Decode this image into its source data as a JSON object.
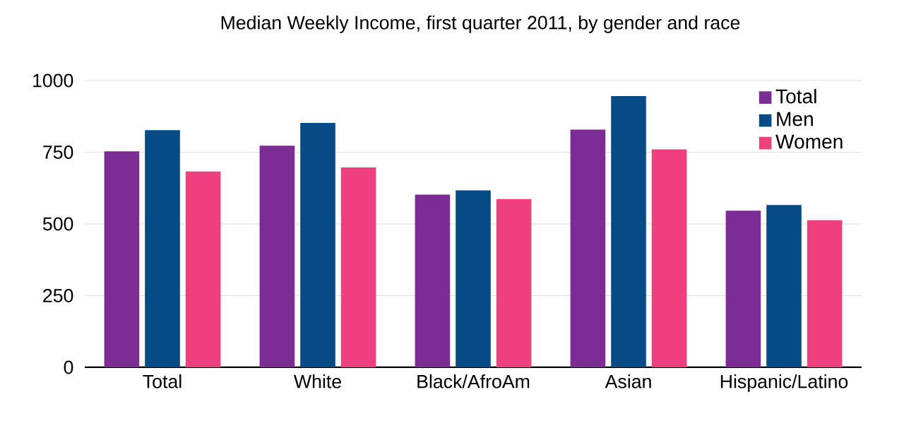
{
  "chart_data": {
    "type": "bar",
    "title": "Median Weekly Income, first quarter 2011, by gender and race",
    "categories": [
      "Total",
      "White",
      "Black/AfroAm",
      "Asian",
      "Hispanic/Latino"
    ],
    "series": [
      {
        "name": "Total",
        "color": "#7b2d94",
        "values": [
          753,
          773,
          602,
          829,
          546
        ]
      },
      {
        "name": "Men",
        "color": "#064a86",
        "values": [
          827,
          852,
          617,
          946,
          566
        ]
      },
      {
        "name": "Women",
        "color": "#ee3f7f",
        "values": [
          683,
          697,
          587,
          760,
          513
        ]
      }
    ],
    "ylim": [
      0,
      1000
    ],
    "yticks": [
      0,
      250,
      500,
      750,
      1000
    ],
    "grid": "y",
    "legend": "top right"
  }
}
